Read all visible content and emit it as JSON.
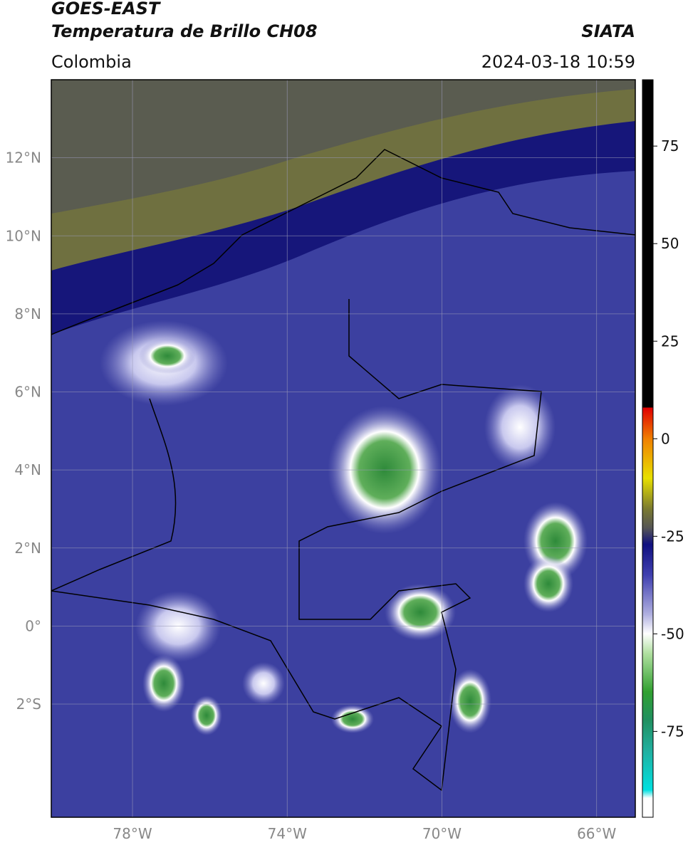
{
  "header": {
    "title": "GOES-EAST",
    "subtitle": "Temperatura de Brillo CH08",
    "source": "SIATA",
    "region": "Colombia",
    "datetime": "2024-03-18 10:59"
  },
  "map": {
    "xlim": [
      -80.1,
      -65
    ],
    "ylim": [
      -4.9,
      14
    ],
    "xticks": [
      {
        "value": -78,
        "label": "78°W"
      },
      {
        "value": -74,
        "label": "74°W"
      },
      {
        "value": -70,
        "label": "70°W"
      },
      {
        "value": -66,
        "label": "66°W"
      }
    ],
    "yticks": [
      {
        "value": 12,
        "label": "12°N"
      },
      {
        "value": 10,
        "label": "10°N"
      },
      {
        "value": 8,
        "label": "8°N"
      },
      {
        "value": 6,
        "label": "6°N"
      },
      {
        "value": 4,
        "label": "4°N"
      },
      {
        "value": 2,
        "label": "2°N"
      },
      {
        "value": 0,
        "label": "0°"
      },
      {
        "value": -2,
        "label": "2°S"
      }
    ],
    "grid": true
  },
  "colorbar": {
    "lim": [
      -97,
      92
    ],
    "ticks": [
      75,
      50,
      25,
      0,
      -25,
      -50,
      -75
    ]
  }
}
